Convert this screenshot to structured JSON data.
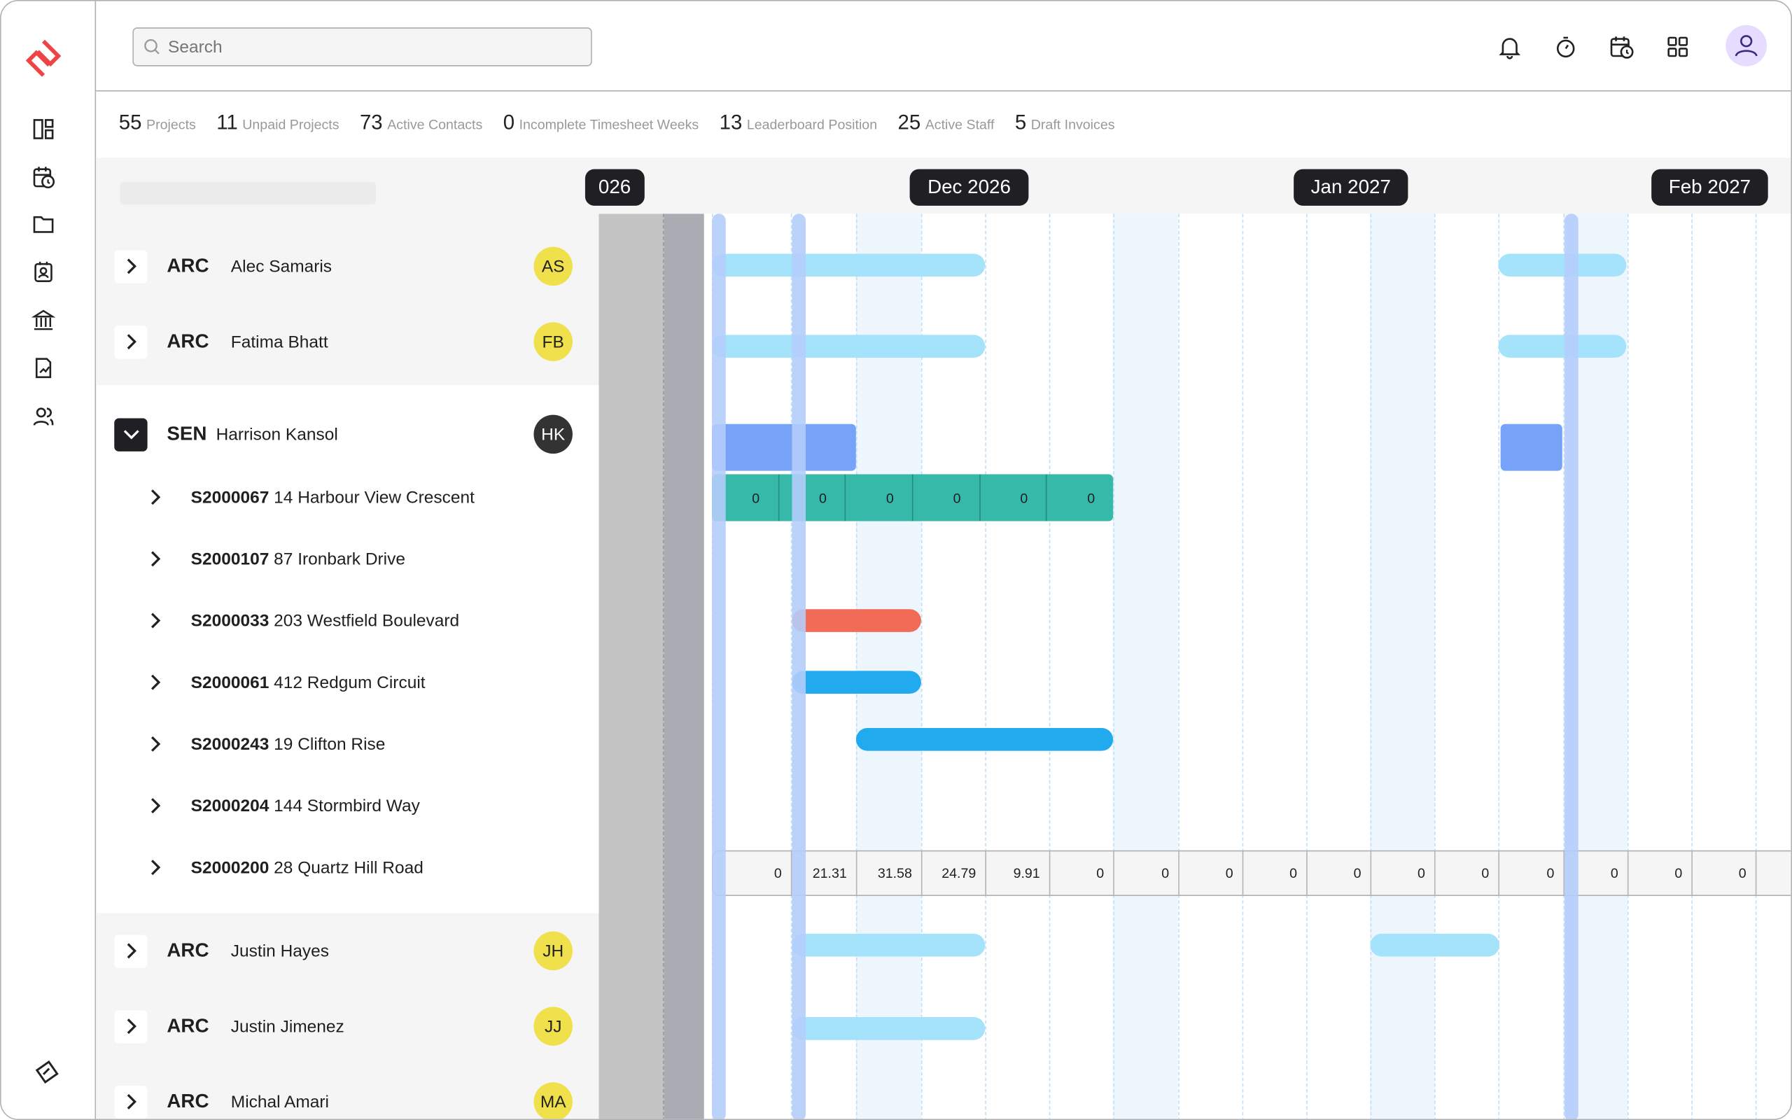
{
  "header": {
    "search_placeholder": "Search",
    "icons": [
      "bell-icon",
      "timer-icon",
      "calendar-clock-icon",
      "grid-icon",
      "user-icon"
    ]
  },
  "sidebar": {
    "icons": [
      "dashboard-icon",
      "calendar-clock-icon",
      "folder-icon",
      "contact-card-icon",
      "bank-icon",
      "report-icon",
      "users-icon"
    ]
  },
  "stats": [
    {
      "value": "55",
      "label": "Projects"
    },
    {
      "value": "11",
      "label": "Unpaid Projects"
    },
    {
      "value": "73",
      "label": "Active Contacts"
    },
    {
      "value": "0",
      "label": "Incomplete Timesheet Weeks"
    },
    {
      "value": "13",
      "label": "Leaderboard Position"
    },
    {
      "value": "25",
      "label": "Active Staff"
    },
    {
      "value": "5",
      "label": "Draft Invoices"
    }
  ],
  "timeline": {
    "months": [
      "026",
      "Dec 2026",
      "Jan 2027",
      "Feb 2027"
    ]
  },
  "staff": [
    {
      "code": "ARC",
      "name": "Alec Samaris",
      "initials": "AS"
    },
    {
      "code": "ARC",
      "name": "Fatima Bhatt",
      "initials": "FB"
    },
    {
      "code": "SEN",
      "name": "Harrison Kansol",
      "initials": "HK"
    },
    {
      "code": "ARC",
      "name": "Justin Hayes",
      "initials": "JH"
    },
    {
      "code": "ARC",
      "name": "Justin Jimenez",
      "initials": "JJ"
    },
    {
      "code": "ARC",
      "name": "Michal Amari",
      "initials": "MA"
    }
  ],
  "projects": [
    {
      "id": "S2000067",
      "address": "14 Harbour View Crescent"
    },
    {
      "id": "S2000107",
      "address": "87 Ironbark Drive"
    },
    {
      "id": "S2000033",
      "address": "203 Westfield Boulevard"
    },
    {
      "id": "S2000061",
      "address": "412 Redgum Circuit"
    },
    {
      "id": "S2000243",
      "address": "19 Clifton Rise"
    },
    {
      "id": "S2000204",
      "address": "144 Stormbird Way"
    },
    {
      "id": "S2000200",
      "address": "28 Quartz Hill Road"
    }
  ],
  "allocation_cells": [
    "0",
    "0",
    "0",
    "0",
    "0",
    "0"
  ],
  "hours_cells": [
    "0",
    "21.31",
    "31.58",
    "24.79",
    "9.91",
    "0",
    "0",
    "0",
    "0",
    "0",
    "0",
    "0",
    "0",
    "0",
    "0",
    "0"
  ],
  "colors": {
    "brand": "#ef4444",
    "light_bar": "#a0e2fb",
    "leave_block": "#76a3f7",
    "allocation": "#36b9a8",
    "project_red": "#f26b57",
    "project_blue": "#21aaee",
    "avatar_yellow": "#f0e04b"
  }
}
